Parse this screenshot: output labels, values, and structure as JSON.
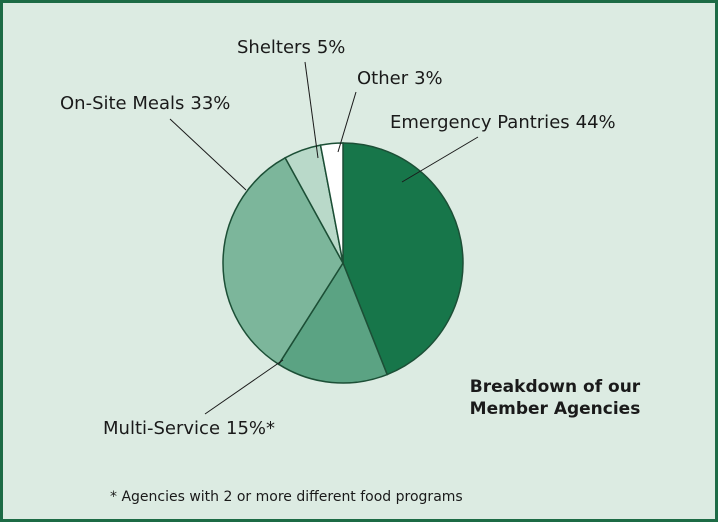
{
  "chart_data": {
    "type": "pie",
    "title": [
      "Breakdown of our",
      "Member Agencies"
    ],
    "categories": [
      "Emergency Pantries",
      "Multi-Service",
      "On-Site Meals",
      "Shelters",
      "Other"
    ],
    "values": [
      44,
      15,
      33,
      5,
      3
    ],
    "value_labels": [
      "44%",
      "15%*",
      "33%",
      "5%",
      "3%"
    ],
    "colors": [
      "#17764a",
      "#5ba383",
      "#7cb69b",
      "#b9d9c9",
      "#ffffff"
    ],
    "footnote": "* Agencies with 2 or more different food programs"
  }
}
